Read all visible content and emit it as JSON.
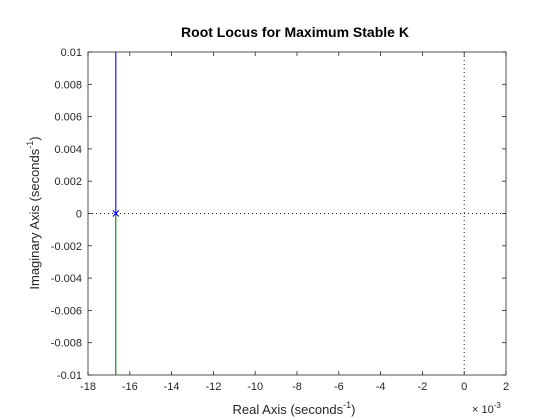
{
  "chart_data": {
    "type": "line",
    "title": "Root Locus for Maximum Stable K",
    "xlabel": "Real Axis (seconds",
    "xlabel_sup": "-1",
    "xlabel_close": ")",
    "ylabel": "Imaginary Axis (seconds",
    "ylabel_sup": "-1",
    "ylabel_close": ")",
    "x_exponent_base": "× 10",
    "x_exponent_power": "-3",
    "xlim": [
      -18,
      2
    ],
    "ylim": [
      -0.01,
      0.01
    ],
    "x_unit_scale": 0.001,
    "xticks": [
      -18,
      -16,
      -14,
      -12,
      -10,
      -8,
      -6,
      -4,
      -2,
      0,
      2
    ],
    "xtick_labels": [
      "-18",
      "-16",
      "-14",
      "-12",
      "-10",
      "-8",
      "-6",
      "-4",
      "-2",
      "0",
      "2"
    ],
    "yticks": [
      0.01,
      0.008,
      0.006,
      0.004,
      0.002,
      0,
      -0.002,
      -0.004,
      -0.006,
      -0.008,
      -0.01
    ],
    "ytick_labels": [
      "0.01",
      "0.008",
      "0.006",
      "0.004",
      "0.002",
      "0",
      "-0.002",
      "-0.004",
      "-0.006",
      "-0.008",
      "-0.01"
    ],
    "grid": false,
    "reference_lines": [
      {
        "orientation": "horizontal",
        "value": 0,
        "style": "dotted"
      },
      {
        "orientation": "vertical",
        "value": 0,
        "style": "dotted"
      }
    ],
    "series": [
      {
        "color": "#0000ff",
        "x": [
          -16.67,
          -16.67
        ],
        "y": [
          0,
          0.01
        ]
      },
      {
        "color": "#008000",
        "x": [
          -16.67,
          -16.67
        ],
        "y": [
          0,
          -0.01
        ]
      }
    ],
    "poles": [
      {
        "x": -16.67,
        "y": 0,
        "marker": "x",
        "color": "#0000ff"
      }
    ]
  }
}
